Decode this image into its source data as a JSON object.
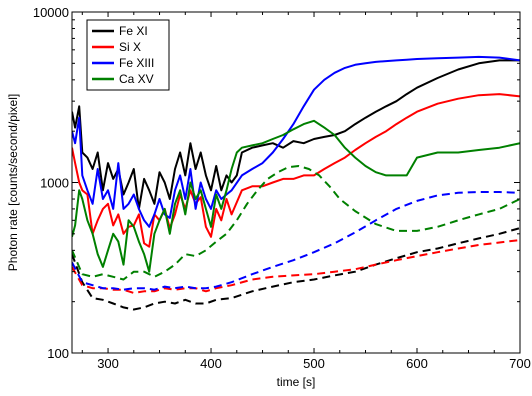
{
  "chart_data": {
    "type": "line",
    "title": "",
    "xlabel": "time [s]",
    "ylabel": "Photon rate [counts/second/pixel]",
    "xlim": [
      265,
      700
    ],
    "ylim": [
      100,
      10000
    ],
    "yscale": "log",
    "xticks": [
      300,
      400,
      500,
      600,
      700
    ],
    "yticks": [
      100,
      1000,
      10000
    ],
    "ytick_labels": [
      "100",
      "1000",
      "10000"
    ],
    "grid": false,
    "legend_position": "top-left",
    "series": [
      {
        "name": "Fe XI",
        "color": "#000000",
        "dash": "solid",
        "x": [
          265,
          268,
          272,
          275,
          280,
          285,
          290,
          295,
          300,
          305,
          310,
          315,
          320,
          325,
          330,
          335,
          340,
          345,
          350,
          355,
          360,
          365,
          370,
          375,
          380,
          385,
          390,
          395,
          400,
          405,
          410,
          415,
          420,
          425,
          430,
          440,
          450,
          460,
          470,
          480,
          490,
          500,
          510,
          520,
          530,
          540,
          550,
          560,
          570,
          580,
          590,
          600,
          620,
          640,
          660,
          680,
          700
        ],
        "y": [
          2600,
          2100,
          2800,
          1500,
          1400,
          1200,
          1500,
          900,
          1300,
          1050,
          1200,
          850,
          1000,
          1200,
          700,
          1050,
          900,
          750,
          1150,
          1000,
          800,
          1200,
          1500,
          1100,
          1700,
          1200,
          1500,
          1100,
          900,
          1250,
          900,
          1100,
          1000,
          1100,
          1500,
          1600,
          1650,
          1700,
          1600,
          1750,
          1700,
          1800,
          1850,
          1900,
          2000,
          2200,
          2400,
          2600,
          2800,
          3000,
          3300,
          3600,
          4100,
          4600,
          5000,
          5200,
          5200
        ]
      },
      {
        "name": "Si X",
        "color": "#ff0000",
        "dash": "solid",
        "x": [
          265,
          268,
          272,
          275,
          280,
          285,
          290,
          295,
          300,
          305,
          310,
          315,
          320,
          325,
          330,
          335,
          340,
          345,
          350,
          355,
          360,
          365,
          370,
          375,
          380,
          385,
          390,
          395,
          400,
          405,
          410,
          415,
          420,
          430,
          440,
          450,
          460,
          470,
          480,
          490,
          500,
          510,
          520,
          530,
          540,
          550,
          560,
          570,
          580,
          590,
          600,
          620,
          640,
          660,
          680,
          700
        ],
        "y": [
          1600,
          1300,
          1000,
          900,
          850,
          500,
          600,
          700,
          750,
          560,
          650,
          500,
          550,
          560,
          650,
          440,
          420,
          650,
          600,
          700,
          540,
          650,
          850,
          700,
          900,
          750,
          820,
          550,
          480,
          700,
          600,
          800,
          650,
          900,
          950,
          950,
          1000,
          1050,
          1050,
          1100,
          1100,
          1200,
          1300,
          1400,
          1550,
          1700,
          1850,
          2000,
          2200,
          2400,
          2600,
          2900,
          3100,
          3250,
          3300,
          3200
        ]
      },
      {
        "name": "Fe XIII",
        "color": "#0000ff",
        "dash": "solid",
        "x": [
          265,
          268,
          272,
          275,
          280,
          285,
          290,
          295,
          300,
          305,
          310,
          315,
          320,
          325,
          330,
          335,
          340,
          345,
          350,
          355,
          360,
          365,
          370,
          375,
          380,
          385,
          390,
          395,
          400,
          405,
          410,
          415,
          420,
          430,
          440,
          450,
          460,
          470,
          480,
          490,
          500,
          510,
          520,
          530,
          540,
          550,
          560,
          570,
          580,
          590,
          600,
          620,
          640,
          660,
          680,
          700
        ],
        "y": [
          2000,
          1700,
          2400,
          1100,
          900,
          750,
          1200,
          800,
          900,
          700,
          1300,
          700,
          750,
          850,
          700,
          600,
          550,
          650,
          800,
          650,
          620,
          900,
          1100,
          800,
          1200,
          700,
          1000,
          800,
          700,
          900,
          800,
          850,
          900,
          1100,
          1200,
          1300,
          1500,
          1800,
          2200,
          2800,
          3500,
          4000,
          4400,
          4700,
          4900,
          5000,
          5100,
          5150,
          5200,
          5250,
          5300,
          5350,
          5400,
          5450,
          5400,
          5200
        ]
      },
      {
        "name": "Ca XV",
        "color": "#008000",
        "dash": "solid",
        "x": [
          265,
          268,
          272,
          275,
          280,
          285,
          290,
          295,
          300,
          305,
          310,
          315,
          320,
          325,
          330,
          335,
          340,
          345,
          350,
          355,
          360,
          365,
          370,
          375,
          380,
          385,
          390,
          395,
          400,
          405,
          410,
          415,
          420,
          425,
          430,
          440,
          450,
          460,
          470,
          480,
          490,
          500,
          510,
          520,
          530,
          540,
          550,
          560,
          570,
          580,
          590,
          600,
          620,
          640,
          660,
          680,
          700
        ],
        "y": [
          480,
          560,
          900,
          800,
          600,
          500,
          380,
          320,
          400,
          500,
          450,
          330,
          600,
          550,
          450,
          380,
          300,
          500,
          600,
          700,
          500,
          750,
          900,
          650,
          1000,
          800,
          900,
          700,
          550,
          850,
          700,
          900,
          1200,
          1500,
          1600,
          1650,
          1700,
          1800,
          1900,
          2050,
          2200,
          2300,
          2100,
          1900,
          1600,
          1400,
          1250,
          1150,
          1100,
          1100,
          1100,
          1400,
          1500,
          1500,
          1550,
          1600,
          1700
        ]
      },
      {
        "name": "",
        "color": "#000000",
        "dash": "dashed",
        "x": [
          265,
          275,
          285,
          295,
          305,
          315,
          325,
          335,
          345,
          355,
          365,
          375,
          385,
          395,
          405,
          420,
          440,
          460,
          480,
          500,
          520,
          540,
          560,
          580,
          600,
          620,
          640,
          660,
          680,
          700
        ],
        "y": [
          380,
          260,
          210,
          205,
          195,
          185,
          180,
          185,
          195,
          200,
          195,
          205,
          195,
          195,
          205,
          210,
          230,
          245,
          260,
          270,
          285,
          300,
          330,
          360,
          390,
          410,
          440,
          470,
          500,
          540
        ]
      },
      {
        "name": "",
        "color": "#ff0000",
        "dash": "dashed",
        "x": [
          265,
          275,
          285,
          295,
          305,
          315,
          325,
          335,
          345,
          355,
          365,
          375,
          385,
          395,
          405,
          420,
          440,
          460,
          480,
          500,
          520,
          540,
          560,
          580,
          600,
          620,
          640,
          660,
          680,
          700
        ],
        "y": [
          320,
          250,
          240,
          240,
          235,
          235,
          225,
          230,
          230,
          240,
          235,
          240,
          240,
          230,
          240,
          250,
          270,
          280,
          285,
          290,
          300,
          310,
          330,
          350,
          370,
          390,
          410,
          430,
          445,
          460
        ]
      },
      {
        "name": "",
        "color": "#0000ff",
        "dash": "dashed",
        "x": [
          265,
          275,
          285,
          295,
          305,
          315,
          325,
          335,
          345,
          355,
          365,
          375,
          385,
          395,
          405,
          420,
          440,
          460,
          480,
          500,
          520,
          540,
          560,
          580,
          600,
          620,
          640,
          660,
          680,
          700
        ],
        "y": [
          340,
          260,
          250,
          240,
          240,
          235,
          240,
          240,
          235,
          245,
          240,
          245,
          240,
          240,
          245,
          260,
          290,
          320,
          350,
          390,
          440,
          510,
          600,
          700,
          780,
          840,
          870,
          880,
          880,
          870
        ]
      },
      {
        "name": "",
        "color": "#008000",
        "dash": "dashed",
        "x": [
          265,
          275,
          285,
          295,
          305,
          315,
          325,
          335,
          345,
          355,
          365,
          375,
          385,
          395,
          405,
          415,
          425,
          435,
          445,
          455,
          465,
          475,
          485,
          495,
          505,
          515,
          525,
          540,
          560,
          580,
          600,
          620,
          640,
          660,
          680,
          700
        ],
        "y": [
          400,
          290,
          280,
          290,
          280,
          270,
          300,
          300,
          280,
          300,
          330,
          380,
          370,
          400,
          450,
          500,
          600,
          750,
          900,
          1050,
          1150,
          1230,
          1250,
          1200,
          1100,
          950,
          800,
          680,
          570,
          520,
          520,
          550,
          600,
          650,
          700,
          800
        ]
      }
    ]
  }
}
